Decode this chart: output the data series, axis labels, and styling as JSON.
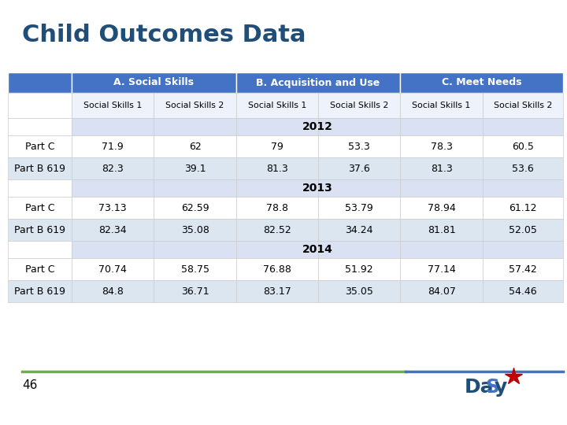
{
  "title": "Child Outcomes Data",
  "title_color": "#1F4E79",
  "header1_labels": [
    "A. Social Skills",
    "B. Acquisition and Use",
    "C. Meet Needs"
  ],
  "header_bg": "#4472C4",
  "header_text_color": "#FFFFFF",
  "subheader_labels": [
    "Social Skills 1",
    "Social Skills 2",
    "Social Skills 1",
    "Social Skills 2",
    "Social Skills 1",
    "Social Skills 2"
  ],
  "year_rows": [
    "2012",
    "2013",
    "2014"
  ],
  "data": {
    "2012": {
      "Part C": [
        71.9,
        62,
        79,
        53.3,
        78.3,
        60.5
      ],
      "Part B 619": [
        82.3,
        39.1,
        81.3,
        37.6,
        81.3,
        53.6
      ]
    },
    "2013": {
      "Part C": [
        73.13,
        62.59,
        78.8,
        53.79,
        78.94,
        61.12
      ],
      "Part B 619": [
        82.34,
        35.08,
        82.52,
        34.24,
        81.81,
        52.05
      ]
    },
    "2014": {
      "Part C": [
        70.74,
        58.75,
        76.88,
        51.92,
        77.14,
        57.42
      ],
      "Part B 619": [
        84.8,
        36.71,
        83.17,
        35.05,
        84.07,
        54.46
      ]
    }
  },
  "row_bg_light": "#DCE6F1",
  "row_bg_white": "#FFFFFF",
  "row_bg_year": "#D9E1F2",
  "subheader_bg": "#EEF2FA",
  "grid_color": "#FFFFFF",
  "bottom_line_color1": "#70AD47",
  "bottom_line_color2": "#4472C4",
  "page_number": "46",
  "fig_width": 7.2,
  "fig_height": 5.4,
  "dpi": 100
}
